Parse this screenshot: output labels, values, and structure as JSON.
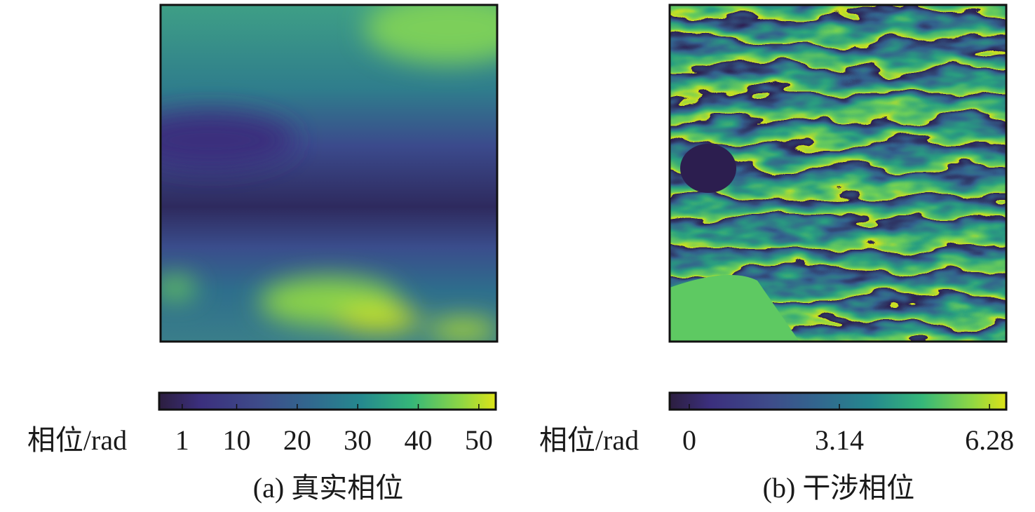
{
  "chart_data": [
    {
      "type": "heatmap",
      "colormap": "viridis",
      "colorbar_label": "相位/rad",
      "caption": "(a) 真实相位",
      "clim": [
        -2.8,
        52.8
      ],
      "cticks": [
        1,
        10,
        20,
        30,
        40,
        50
      ]
    },
    {
      "type": "heatmap",
      "colormap": "viridis",
      "colorbar_label": "相位/rad",
      "caption": "(b) 干涉相位",
      "clim": [
        -0.41,
        6.63
      ],
      "cticks": [
        0,
        3.14,
        6.28
      ]
    }
  ]
}
